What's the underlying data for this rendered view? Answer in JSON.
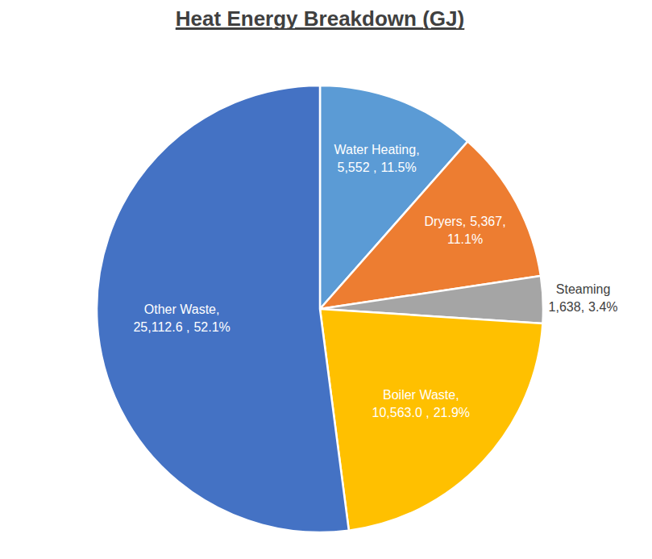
{
  "chart_data": {
    "type": "pie",
    "title": "Heat Energy Breakdown (GJ)",
    "categories": [
      "Water Heating,",
      "Dryers,",
      "Steaming",
      "Boiler Waste,",
      "Other Waste,"
    ],
    "values": [
      5552,
      5367,
      1638,
      10563.0,
      25112.6
    ],
    "value_labels": [
      "5,552 ,",
      "5,367,",
      "1,638,",
      "10,563.0 ,",
      "25,112.6 ,"
    ],
    "percentages": [
      11.5,
      11.1,
      3.4,
      21.9,
      52.1
    ],
    "percentage_labels": [
      "11.5%",
      "11.1%",
      "3.4%",
      "21.9%",
      "52.1%"
    ],
    "colors": [
      "#5b9bd5",
      "#ed7d31",
      "#a5a5a5",
      "#ffc000",
      "#4472c4"
    ],
    "data_labels": true
  }
}
